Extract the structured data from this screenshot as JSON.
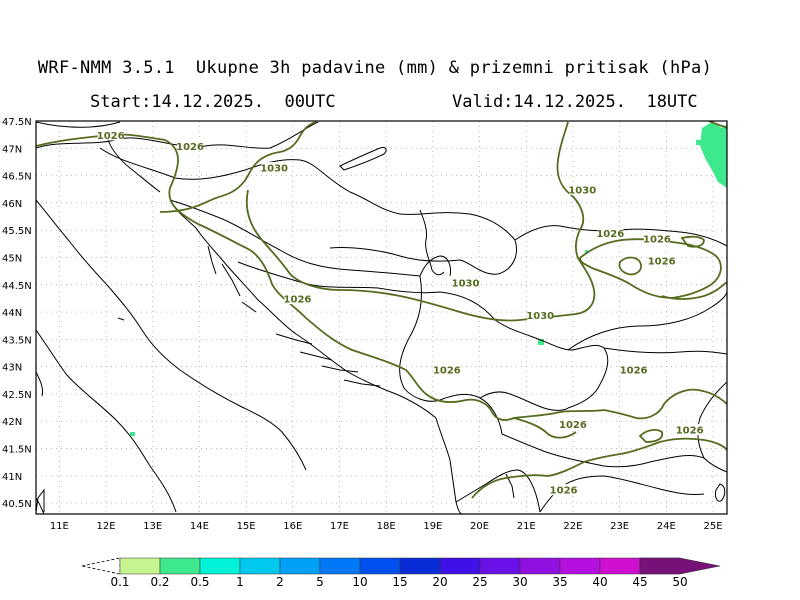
{
  "header": {
    "title": "WRF-NMM 3.5.1  Ukupne 3h padavine (mm) & prizemni pritisak (hPa)",
    "start": "Start:14.12.2025.  00UTC",
    "valid": "Valid:14.12.2025.  18UTC"
  },
  "axes": {
    "lat_labels": [
      "47.5N",
      "47N",
      "46.5N",
      "46N",
      "45.5N",
      "45N",
      "44.5N",
      "44N",
      "43.5N",
      "43N",
      "42.5N",
      "42N",
      "41.5N",
      "41N",
      "40.5N"
    ],
    "lon_labels": [
      "11E",
      "12E",
      "13E",
      "14E",
      "15E",
      "16E",
      "17E",
      "18E",
      "19E",
      "20E",
      "21E",
      "22E",
      "23E",
      "24E",
      "25E"
    ]
  },
  "isobars": {
    "color": "#556b1e",
    "labels": [
      {
        "text": "1026",
        "lon": 12.1,
        "lat": 47.2
      },
      {
        "text": "1026",
        "lon": 13.8,
        "lat": 47.0
      },
      {
        "text": "1030",
        "lon": 15.6,
        "lat": 46.6
      },
      {
        "text": "1030",
        "lon": 22.2,
        "lat": 46.2
      },
      {
        "text": "1026",
        "lon": 22.8,
        "lat": 45.4
      },
      {
        "text": "1026",
        "lon": 23.8,
        "lat": 45.3
      },
      {
        "text": "1026",
        "lon": 23.9,
        "lat": 44.9
      },
      {
        "text": "1026",
        "lon": 16.1,
        "lat": 44.2
      },
      {
        "text": "1030",
        "lon": 19.7,
        "lat": 44.5
      },
      {
        "text": "1030",
        "lon": 21.3,
        "lat": 43.9
      },
      {
        "text": "1026",
        "lon": 19.3,
        "lat": 42.9
      },
      {
        "text": "1026",
        "lon": 23.3,
        "lat": 42.9
      },
      {
        "text": "1026",
        "lon": 22.0,
        "lat": 41.9
      },
      {
        "text": "1026",
        "lon": 24.5,
        "lat": 41.8
      },
      {
        "text": "1026",
        "lon": 21.8,
        "lat": 40.7
      }
    ]
  },
  "colorbar": {
    "labels": [
      "0.1",
      "0.2",
      "0.5",
      "1",
      "2",
      "5",
      "10",
      "15",
      "20",
      "25",
      "30",
      "35",
      "40",
      "45",
      "50"
    ],
    "colors": [
      "#c6f58f",
      "#3ee88c",
      "#00f2d8",
      "#00c8f0",
      "#00a0f8",
      "#0078f8",
      "#0050f0",
      "#0a2cd8",
      "#4010e8",
      "#6a10e8",
      "#9010e0",
      "#b410e0",
      "#d010d0",
      "#b0109a",
      "#78107a"
    ]
  },
  "precip_color": "#3ee88c"
}
